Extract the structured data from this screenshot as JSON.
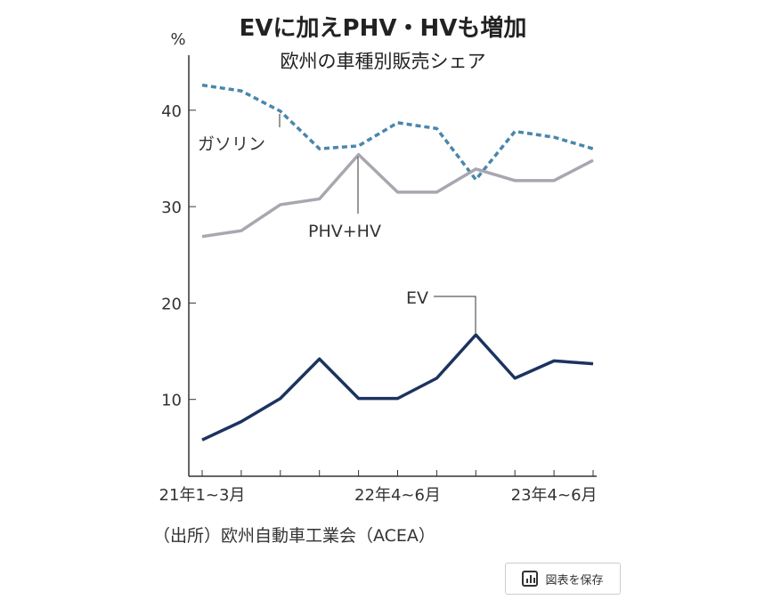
{
  "chart_data": {
    "type": "line",
    "title": "EVに加えPHV・HVも増加",
    "subtitle": "欧州の車種別販売シェア",
    "ylabel": "%",
    "ylim": [
      0,
      45
    ],
    "yticks": [
      10,
      20,
      30,
      40
    ],
    "x": [
      "21Q1",
      "21Q2",
      "21Q3",
      "21Q4",
      "22Q1",
      "22Q2",
      "22Q3",
      "22Q4",
      "23Q1",
      "23Q2",
      "23Q3"
    ],
    "xtick_labels": [
      {
        "index": 0,
        "label": "21年1~3月"
      },
      {
        "index": 5,
        "label": "22年4~6月"
      },
      {
        "index": 9,
        "label": "23年4~6月"
      }
    ],
    "series": [
      {
        "name": "ガソリン",
        "color": "#4a86ad",
        "dashed": true,
        "values": [
          42.6,
          42.0,
          39.9,
          36.0,
          36.3,
          38.7,
          38.1,
          32.8,
          37.8,
          37.2,
          36.0
        ]
      },
      {
        "name": "PHV+HV",
        "color": "#aaa6b0",
        "dashed": false,
        "values": [
          26.9,
          27.5,
          30.2,
          30.8,
          35.4,
          31.5,
          31.5,
          33.9,
          32.7,
          32.7,
          34.8
        ]
      },
      {
        "name": "EV",
        "color": "#1c3360",
        "dashed": false,
        "values": [
          5.8,
          7.7,
          10.1,
          14.2,
          10.1,
          10.1,
          12.2,
          16.7,
          12.2,
          14.0,
          13.7
        ]
      }
    ],
    "source": "（出所）欧州自動車工業会（ACEA）"
  },
  "ui": {
    "save_label": "図表を保存",
    "save_icon": "bar-chart-icon"
  }
}
